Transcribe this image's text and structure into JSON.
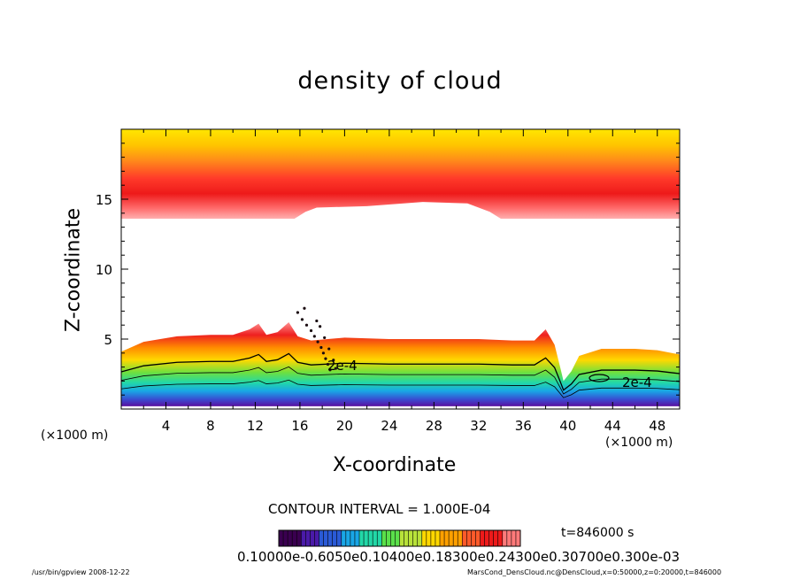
{
  "chart_data": {
    "type": "heatmap",
    "title": "density of cloud",
    "xlabel": "X-coordinate",
    "ylabel": "Z-coordinate",
    "x_unit_left": "(×1000 m)",
    "x_unit_right": "(×1000 m)",
    "xlim": [
      0,
      50
    ],
    "ylim": [
      0,
      20
    ],
    "x_ticks": [
      4,
      8,
      12,
      16,
      20,
      24,
      28,
      32,
      36,
      40,
      44,
      48
    ],
    "x_tick_labels": [
      "4",
      "8",
      "12",
      "16",
      "20",
      "24",
      "28",
      "32",
      "36",
      "40",
      "44",
      "48"
    ],
    "y_ticks": [
      5,
      10,
      15
    ],
    "y_tick_labels": [
      "5",
      "10",
      "15"
    ],
    "upper_cloud_base": [
      [
        0,
        13.6
      ],
      [
        15.5,
        13.6
      ],
      [
        16.5,
        14.1
      ],
      [
        17.5,
        14.4
      ],
      [
        22,
        14.5
      ],
      [
        27,
        14.8
      ],
      [
        31,
        14.7
      ],
      [
        33,
        14.1
      ],
      [
        34,
        13.6
      ],
      [
        50,
        13.6
      ]
    ],
    "lower_cloud_top": [
      [
        0,
        4.1
      ],
      [
        2,
        4.8
      ],
      [
        5,
        5.2
      ],
      [
        8,
        5.3
      ],
      [
        10,
        5.3
      ],
      [
        11.5,
        5.7
      ],
      [
        12.3,
        6.1
      ],
      [
        13,
        5.3
      ],
      [
        14,
        5.5
      ],
      [
        15,
        6.2
      ],
      [
        15.8,
        5.2
      ],
      [
        17,
        4.9
      ],
      [
        20,
        5.1
      ],
      [
        24,
        5.0
      ],
      [
        28,
        5.0
      ],
      [
        32,
        5.0
      ],
      [
        35,
        4.9
      ],
      [
        37,
        4.9
      ],
      [
        38,
        5.7
      ],
      [
        38.8,
        4.6
      ],
      [
        39.3,
        3.0
      ],
      [
        39.6,
        2.0
      ],
      [
        40.3,
        2.7
      ],
      [
        41,
        3.8
      ],
      [
        43,
        4.3
      ],
      [
        46,
        4.3
      ],
      [
        48,
        4.2
      ],
      [
        50,
        3.9
      ]
    ],
    "contour_labels": [
      "2e-4",
      "2e-4"
    ],
    "contour_interval_text": "CONTOUR INTERVAL = 1.000E-04",
    "time_text": "t=846000 s",
    "colorbar_labels_text": "0.10000e-0.6050e0.10400e0.18300e0.24300e0.30700e0.300e-03",
    "colorbar_colors": [
      "#3a0050",
      "#4a1aa8",
      "#2a5ad6",
      "#19a6e6",
      "#22d8a8",
      "#5ae04a",
      "#b8e23a",
      "#ffd800",
      "#ffa000",
      "#ff5a2a",
      "#ee1a1a",
      "#ff7a7a"
    ]
  },
  "footer": {
    "left": "/usr/bin/gpview   2008-12-22",
    "right": "MarsCond_DensCloud.nc@DensCloud,x=0:50000,z=0:20000,t=846000"
  }
}
